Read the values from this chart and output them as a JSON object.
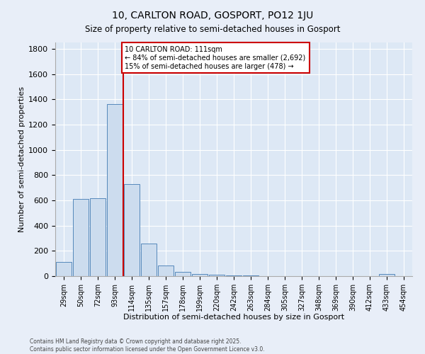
{
  "title": "10, CARLTON ROAD, GOSPORT, PO12 1JU",
  "subtitle": "Size of property relative to semi-detached houses in Gosport",
  "xlabel": "Distribution of semi-detached houses by size in Gosport",
  "ylabel": "Number of semi-detached properties",
  "categories": [
    "29sqm",
    "50sqm",
    "72sqm",
    "93sqm",
    "114sqm",
    "135sqm",
    "157sqm",
    "178sqm",
    "199sqm",
    "220sqm",
    "242sqm",
    "263sqm",
    "284sqm",
    "305sqm",
    "327sqm",
    "348sqm",
    "369sqm",
    "390sqm",
    "412sqm",
    "433sqm",
    "454sqm"
  ],
  "values": [
    110,
    610,
    615,
    1360,
    730,
    260,
    85,
    35,
    15,
    10,
    5,
    5,
    0,
    0,
    0,
    0,
    0,
    0,
    0,
    15,
    0
  ],
  "bar_color": "#ccdcee",
  "bar_edge_color": "#5588bb",
  "vline_color": "#cc0000",
  "annotation_title": "10 CARLTON ROAD: 111sqm",
  "annotation_line1": "← 84% of semi-detached houses are smaller (2,692)",
  "annotation_line2": "15% of semi-detached houses are larger (478) →",
  "annotation_box_color": "#cc0000",
  "ylim": [
    0,
    1850
  ],
  "yticks": [
    0,
    200,
    400,
    600,
    800,
    1000,
    1200,
    1400,
    1600,
    1800
  ],
  "footer1": "Contains HM Land Registry data © Crown copyright and database right 2025.",
  "footer2": "Contains public sector information licensed under the Open Government Licence v3.0.",
  "bg_color": "#e8eef8",
  "plot_bg_color": "#dde8f5"
}
